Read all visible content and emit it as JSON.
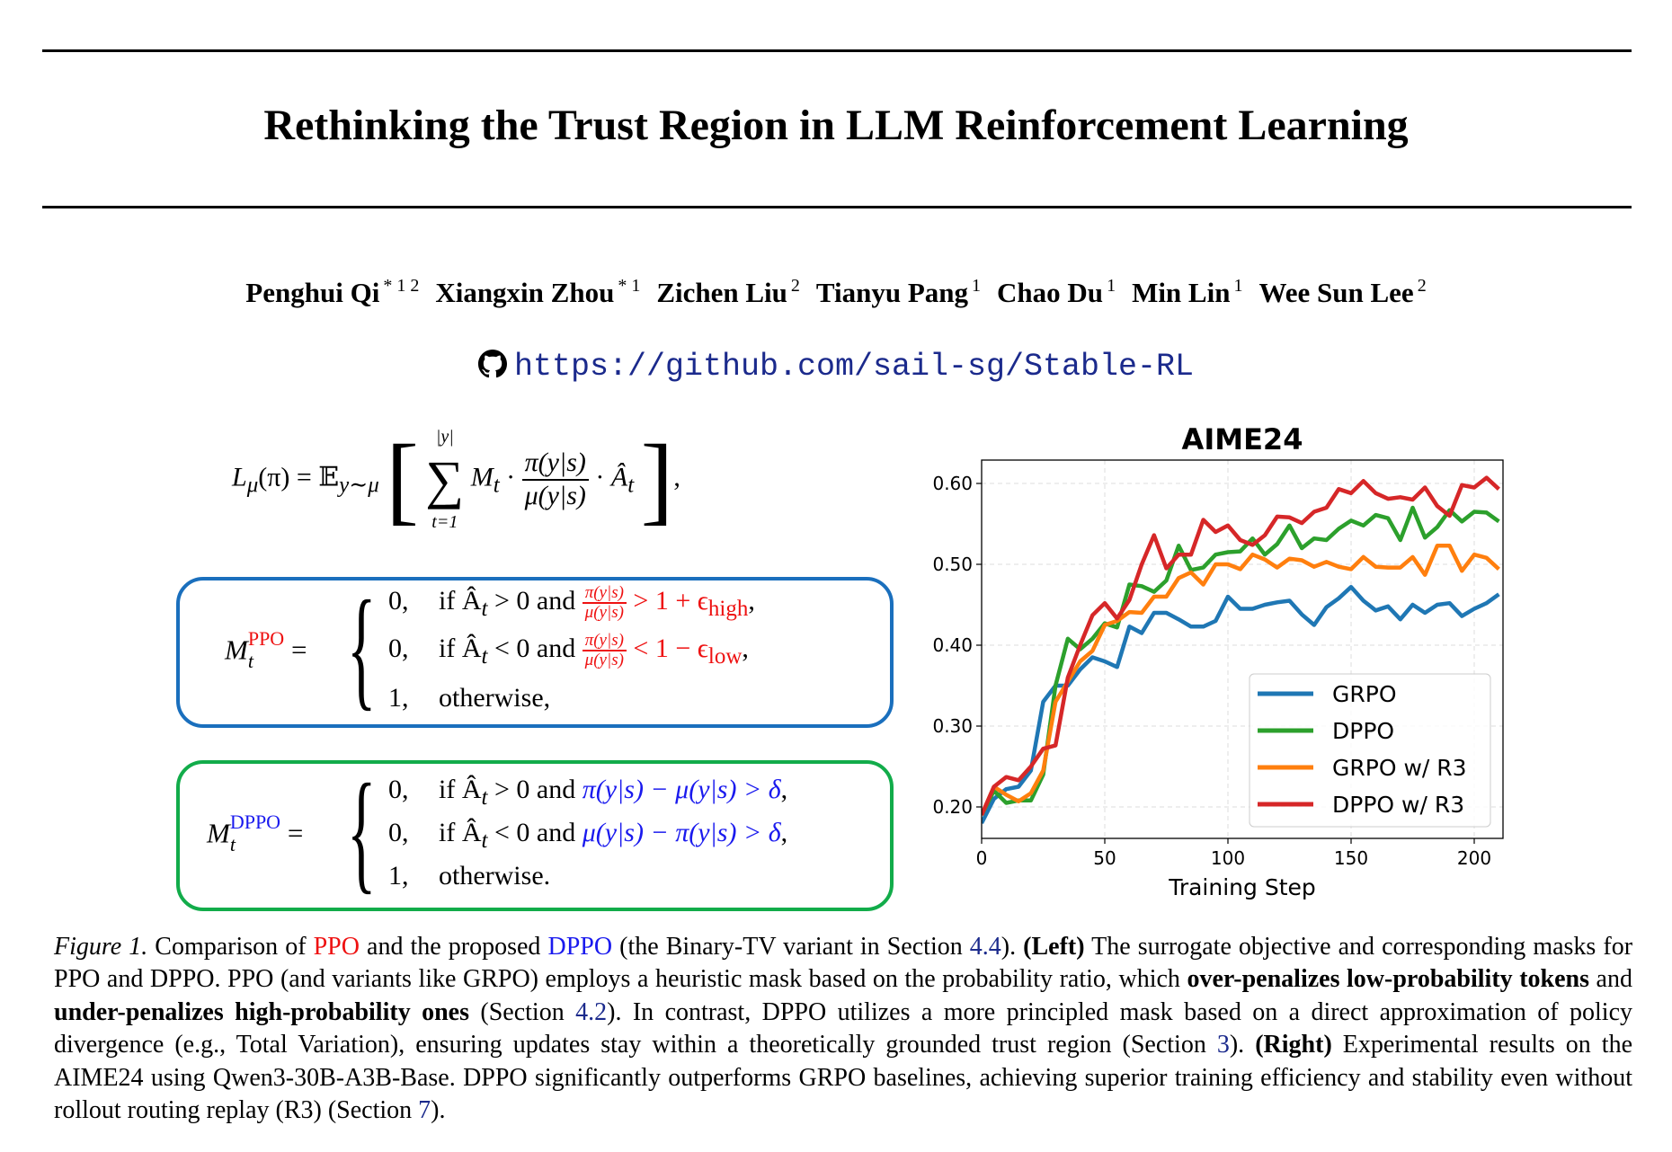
{
  "title": "Rethinking the Trust Region in LLM Reinforcement Learning",
  "authors": [
    {
      "name": "Penghui Qi",
      "sup": "* 1 2"
    },
    {
      "name": "Xiangxin Zhou",
      "sup": "* 1"
    },
    {
      "name": "Zichen Liu",
      "sup": "2"
    },
    {
      "name": "Tianyu Pang",
      "sup": "1"
    },
    {
      "name": "Chao Du",
      "sup": "1"
    },
    {
      "name": "Min Lin",
      "sup": "1"
    },
    {
      "name": "Wee Sun Lee",
      "sup": "2"
    }
  ],
  "github_url": "https://github.com/sail-sg/Stable-RL",
  "formula": {
    "lhs": "L",
    "lhs_sub": "μ",
    "lhs_arg": "(π) = 𝔼",
    "exp_sub": "y∼μ",
    "sum_top": "|y|",
    "sum_bottom": "t=1",
    "mt": "M",
    "mt_sub": "t",
    "num": "π(y|s)",
    "den": "μ(y|s)",
    "adv": "Â",
    "tail": ","
  },
  "ppo_mask": {
    "label": "M",
    "label_sub": "t",
    "label_sup": "PPO",
    "rows": [
      {
        "value": "0,",
        "cond": "if Â",
        "cond2": " > 0 and ",
        "num": "π(y|s)",
        "den": "μ(y|s)",
        "rhs": " > 1 + ϵ",
        "rhs_sub": "high",
        "end": ","
      },
      {
        "value": "0,",
        "cond": "if Â",
        "cond2": " < 0 and ",
        "num": "π(y|s)",
        "den": "μ(y|s)",
        "rhs": " < 1 − ϵ",
        "rhs_sub": "low",
        "end": ","
      },
      {
        "value": "1,",
        "cond": "otherwise,"
      }
    ]
  },
  "dppo_mask": {
    "label": "M",
    "label_sub": "t",
    "label_sup": "DPPO",
    "rows": [
      {
        "value": "0,",
        "cond": "if Â",
        "cond2": " > 0 and ",
        "expr": "π(y|s) − μ(y|s) > δ",
        "end": ","
      },
      {
        "value": "0,",
        "cond": "if Â",
        "cond2": " < 0 and ",
        "expr": "μ(y|s) − π(y|s) > δ",
        "end": ","
      },
      {
        "value": "1,",
        "cond": "otherwise."
      }
    ]
  },
  "caption": [
    {
      "t": "Figure 1.",
      "s": "i"
    },
    {
      "t": " Comparison of ",
      "s": ""
    },
    {
      "t": "PPO",
      "s": "red"
    },
    {
      "t": " and the proposed ",
      "s": ""
    },
    {
      "t": "DPPO",
      "s": "blue"
    },
    {
      "t": " (the Binary-TV variant in Section ",
      "s": ""
    },
    {
      "t": "4.4",
      "s": "link"
    },
    {
      "t": "). ",
      "s": ""
    },
    {
      "t": "(Left)",
      "s": "b"
    },
    {
      "t": " The surrogate objective and corresponding masks for PPO and DPPO. PPO (and variants like GRPO) employs a heuristic mask based on the probability ratio, which ",
      "s": ""
    },
    {
      "t": "over-penalizes low-probability tokens",
      "s": "b"
    },
    {
      "t": " and ",
      "s": ""
    },
    {
      "t": "under-penalizes high-probability ones",
      "s": "b"
    },
    {
      "t": " (Section ",
      "s": ""
    },
    {
      "t": "4.2",
      "s": "link"
    },
    {
      "t": "). In contrast, DPPO utilizes a more principled mask based on a direct approximation of policy divergence (e.g., Total Variation), ensuring updates stay within a theoretically grounded trust region (Section ",
      "s": ""
    },
    {
      "t": "3",
      "s": "link"
    },
    {
      "t": "). ",
      "s": ""
    },
    {
      "t": "(Right)",
      "s": "b"
    },
    {
      "t": " Experimental results on the AIME24 using Qwen3-30B-A3B-Base. DPPO significantly outperforms GRPO baselines, achieving superior training efficiency and stability even without rollout routing replay (R3) (Section ",
      "s": ""
    },
    {
      "t": "7",
      "s": "link"
    },
    {
      "t": ").",
      "s": ""
    }
  ],
  "chart_data": {
    "type": "line",
    "title": "AIME24",
    "xlabel": "Training Step",
    "ylabel": "",
    "xlim": [
      0,
      210
    ],
    "ylim": [
      0.16,
      0.63
    ],
    "xticks": [
      0,
      50,
      100,
      150,
      200
    ],
    "yticks": [
      0.2,
      0.3,
      0.4,
      0.5,
      0.6
    ],
    "ytick_labels": [
      "0.20",
      "0.30",
      "0.40",
      "0.50",
      "0.60"
    ],
    "grid": true,
    "legend_position": "bottom-right",
    "x": [
      0,
      5,
      10,
      15,
      20,
      25,
      30,
      35,
      40,
      45,
      50,
      55,
      60,
      65,
      70,
      75,
      80,
      85,
      90,
      95,
      100,
      105,
      110,
      115,
      120,
      125,
      130,
      135,
      140,
      145,
      150,
      155,
      160,
      165,
      170,
      175,
      180,
      185,
      190,
      195,
      200,
      205,
      210
    ],
    "series": [
      {
        "name": "GRPO",
        "color": "#1f77b4",
        "values": [
          0.18,
          0.21,
          0.222,
          0.225,
          0.245,
          0.33,
          0.35,
          0.35,
          0.37,
          0.385,
          0.38,
          0.373,
          0.423,
          0.415,
          0.44,
          0.44,
          0.432,
          0.423,
          0.423,
          0.43,
          0.46,
          0.445,
          0.445,
          0.45,
          0.453,
          0.455,
          0.438,
          0.425,
          0.447,
          0.458,
          0.472,
          0.455,
          0.443,
          0.448,
          0.432,
          0.45,
          0.44,
          0.45,
          0.452,
          0.436,
          0.445,
          0.452,
          0.463
        ]
      },
      {
        "name": "DPPO",
        "color": "#2ca02c",
        "values": [
          0.19,
          0.22,
          0.205,
          0.208,
          0.208,
          0.24,
          0.35,
          0.408,
          0.395,
          0.408,
          0.427,
          0.422,
          0.475,
          0.473,
          0.466,
          0.48,
          0.523,
          0.493,
          0.496,
          0.512,
          0.515,
          0.516,
          0.532,
          0.512,
          0.525,
          0.548,
          0.52,
          0.532,
          0.53,
          0.544,
          0.554,
          0.548,
          0.561,
          0.557,
          0.53,
          0.57,
          0.533,
          0.546,
          0.567,
          0.553,
          0.565,
          0.564,
          0.553
        ]
      },
      {
        "name": "GRPO w/ R3",
        "color": "#ff7f0e",
        "values": [
          0.19,
          0.225,
          0.215,
          0.207,
          0.217,
          0.245,
          0.33,
          0.355,
          0.38,
          0.393,
          0.425,
          0.43,
          0.441,
          0.44,
          0.46,
          0.46,
          0.483,
          0.49,
          0.475,
          0.5,
          0.5,
          0.494,
          0.512,
          0.506,
          0.496,
          0.507,
          0.505,
          0.497,
          0.503,
          0.497,
          0.494,
          0.509,
          0.497,
          0.496,
          0.496,
          0.509,
          0.487,
          0.523,
          0.523,
          0.492,
          0.512,
          0.508,
          0.494
        ]
      },
      {
        "name": "DPPO w/ R3",
        "color": "#d62728",
        "values": [
          0.19,
          0.225,
          0.237,
          0.233,
          0.25,
          0.272,
          0.276,
          0.36,
          0.4,
          0.437,
          0.452,
          0.433,
          0.456,
          0.5,
          0.536,
          0.495,
          0.512,
          0.512,
          0.555,
          0.54,
          0.548,
          0.53,
          0.524,
          0.536,
          0.559,
          0.558,
          0.551,
          0.565,
          0.57,
          0.593,
          0.588,
          0.603,
          0.588,
          0.581,
          0.583,
          0.58,
          0.595,
          0.572,
          0.56,
          0.598,
          0.595,
          0.607,
          0.593
        ]
      }
    ]
  }
}
